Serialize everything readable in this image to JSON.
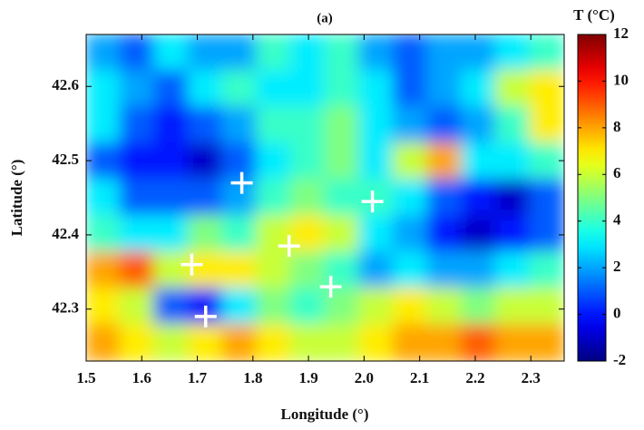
{
  "chart_data": {
    "type": "heatmap",
    "title": "(a)",
    "x_label": "Longitude (°)",
    "y_label": "Latitude (°)",
    "colorbar_label": "T (°C)",
    "colormap": "jet",
    "xlim": [
      1.5,
      2.36
    ],
    "ylim": [
      42.23,
      42.67
    ],
    "clim": [
      -2,
      12
    ],
    "xticks": [
      1.5,
      1.6,
      1.7,
      1.8,
      1.9,
      {
        "value": 2,
        "label": "2.0"
      },
      2.1,
      2.2,
      2.3
    ],
    "yticks": [
      42.3,
      42.4,
      42.5,
      42.6
    ],
    "cticks": [
      -2,
      0,
      2,
      4,
      6,
      8,
      10,
      12
    ],
    "z": [
      [
        2,
        1,
        3,
        2,
        2,
        4,
        3,
        4,
        2,
        1,
        2,
        2,
        3,
        4
      ],
      [
        3,
        2,
        1,
        3,
        4,
        3,
        3,
        4,
        3,
        1,
        2,
        3,
        6,
        7
      ],
      [
        3,
        1,
        0,
        1,
        2,
        4,
        4,
        5,
        3,
        2,
        1,
        2,
        4,
        7
      ],
      [
        1,
        0,
        0,
        -1,
        1,
        3,
        4,
        5,
        3,
        6,
        8,
        3,
        3,
        4
      ],
      [
        3,
        1,
        1,
        1,
        2,
        4,
        5,
        4,
        4,
        3,
        1,
        0,
        -1,
        1
      ],
      [
        4,
        3,
        3,
        5,
        4,
        6,
        7,
        6,
        3,
        2,
        0,
        -1,
        0,
        1
      ],
      [
        8,
        9,
        6,
        7,
        7,
        6,
        5,
        4,
        2,
        3,
        2,
        2,
        3,
        4
      ],
      [
        7,
        6,
        1,
        0,
        3,
        5,
        4,
        5,
        6,
        7,
        6,
        5,
        6,
        6
      ],
      [
        8,
        7,
        6,
        7,
        8,
        7,
        6,
        6,
        7,
        8,
        8,
        9,
        8,
        8
      ]
    ],
    "markers": {
      "color": "#ffffff",
      "x": [
        1.78,
        2.015,
        1.865,
        1.69,
        1.94,
        1.715
      ],
      "y": [
        42.47,
        42.445,
        42.385,
        42.36,
        42.33,
        42.29
      ]
    }
  }
}
